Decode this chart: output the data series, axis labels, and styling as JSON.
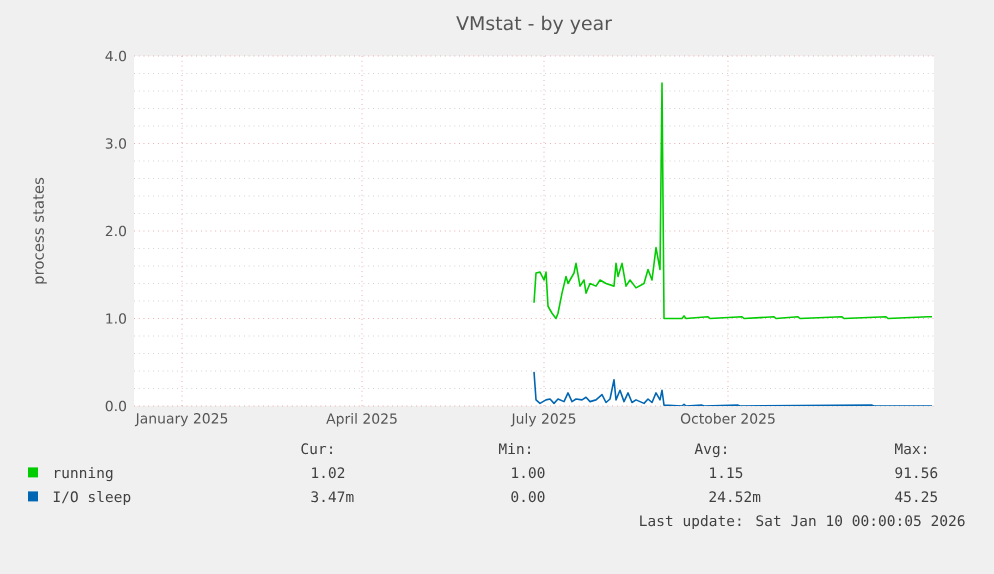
{
  "chart_data": {
    "type": "line",
    "title": "VMstat - by year",
    "ylabel": "process states",
    "xlim": [
      "2024-12-08",
      "2026-01-12"
    ],
    "xticks": [
      {
        "value": "2025-01-01",
        "label": "January 2025"
      },
      {
        "value": "2025-04-01",
        "label": "April 2025"
      },
      {
        "value": "2025-07-01",
        "label": "July 2025"
      },
      {
        "value": "2025-10-01",
        "label": "October 2025"
      }
    ],
    "ylim": [
      0,
      4
    ],
    "yticks": [
      {
        "value": 0,
        "label": "0.0"
      },
      {
        "value": 1,
        "label": "1.0"
      },
      {
        "value": 2,
        "label": "2.0"
      },
      {
        "value": 3,
        "label": "3.0"
      },
      {
        "value": 4,
        "label": "4.0"
      }
    ],
    "grid": true,
    "legend": "bottom",
    "series": [
      {
        "name": "running",
        "color": "#00cc00",
        "x": [
          "2025-06-26",
          "2025-06-27",
          "2025-06-29",
          "2025-07-01",
          "2025-07-02",
          "2025-07-03",
          "2025-07-05",
          "2025-07-07",
          "2025-07-08",
          "2025-07-10",
          "2025-07-12",
          "2025-07-13",
          "2025-07-16",
          "2025-07-17",
          "2025-07-19",
          "2025-07-21",
          "2025-07-22",
          "2025-07-24",
          "2025-07-27",
          "2025-07-29",
          "2025-08-01",
          "2025-08-05",
          "2025-08-06",
          "2025-08-07",
          "2025-08-09",
          "2025-08-11",
          "2025-08-13",
          "2025-08-16",
          "2025-08-20",
          "2025-08-22",
          "2025-08-24",
          "2025-08-26",
          "2025-08-28",
          "2025-08-29",
          "2025-08-30",
          "2025-09-08",
          "2025-09-09",
          "2025-09-10",
          "2025-09-21",
          "2025-09-22",
          "2025-10-08",
          "2025-10-09",
          "2025-10-24",
          "2025-10-25",
          "2025-11-05",
          "2025-11-06",
          "2025-11-27",
          "2025-11-28",
          "2025-12-19",
          "2025-12-20",
          "2026-01-09",
          "2026-01-11"
        ],
        "values": [
          1.18,
          1.52,
          1.53,
          1.44,
          1.53,
          1.14,
          1.06,
          1.0,
          1.06,
          1.29,
          1.48,
          1.4,
          1.52,
          1.63,
          1.37,
          1.44,
          1.29,
          1.4,
          1.37,
          1.44,
          1.4,
          1.37,
          1.63,
          1.48,
          1.63,
          1.37,
          1.44,
          1.35,
          1.4,
          1.56,
          1.44,
          1.81,
          1.56,
          3.69,
          1.0,
          1.0,
          1.03,
          1.0,
          1.02,
          1.0,
          1.02,
          1.0,
          1.02,
          1.0,
          1.02,
          1.0,
          1.02,
          1.0,
          1.02,
          1.0,
          1.02,
          1.02
        ]
      },
      {
        "name": "I/O sleep",
        "color": "#0066b3",
        "x": [
          "2025-06-26",
          "2025-06-27",
          "2025-06-29",
          "2025-07-02",
          "2025-07-04",
          "2025-07-06",
          "2025-07-08",
          "2025-07-11",
          "2025-07-13",
          "2025-07-15",
          "2025-07-17",
          "2025-07-20",
          "2025-07-22",
          "2025-07-24",
          "2025-07-27",
          "2025-07-30",
          "2025-08-01",
          "2025-08-03",
          "2025-08-05",
          "2025-08-06",
          "2025-08-08",
          "2025-08-10",
          "2025-08-12",
          "2025-08-14",
          "2025-08-16",
          "2025-08-20",
          "2025-08-22",
          "2025-08-24",
          "2025-08-26",
          "2025-08-28",
          "2025-08-29",
          "2025-08-30",
          "2025-09-08",
          "2025-09-09",
          "2025-09-10",
          "2025-09-18",
          "2025-09-19",
          "2025-10-06",
          "2025-10-07",
          "2025-12-12",
          "2025-12-13",
          "2026-01-11"
        ],
        "values": [
          0.39,
          0.07,
          0.03,
          0.07,
          0.08,
          0.03,
          0.08,
          0.05,
          0.15,
          0.05,
          0.08,
          0.07,
          0.1,
          0.05,
          0.07,
          0.13,
          0.04,
          0.08,
          0.3,
          0.07,
          0.18,
          0.05,
          0.15,
          0.04,
          0.07,
          0.03,
          0.08,
          0.04,
          0.15,
          0.07,
          0.18,
          0.01,
          0.0,
          0.02,
          0.0,
          0.01,
          0.0,
          0.01,
          0.0,
          0.01,
          0.0,
          0.0
        ]
      }
    ],
    "annotations": [
      "Cur:",
      "Min:",
      "Avg:",
      "Max:",
      "1.02",
      "1.00",
      "1.15",
      "91.56",
      "3.47m",
      "0.00",
      "24.52m",
      "45.25",
      "Last update: Sat Jan 10 00:00:05 2026"
    ]
  }
}
